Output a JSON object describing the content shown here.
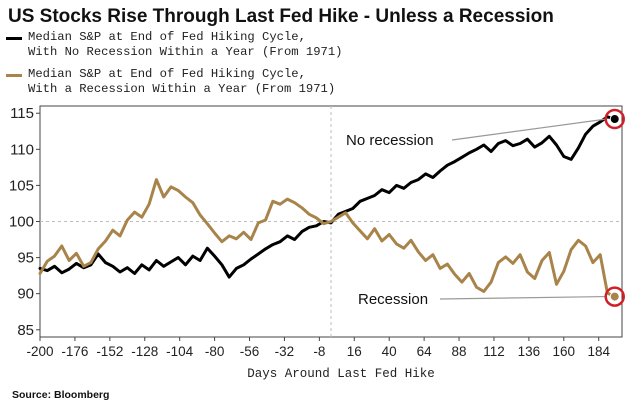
{
  "title": "US Stocks Rise Through Last Fed Hike - Unless a Recession",
  "source": "Source: Bloomberg",
  "colors": {
    "no_recession": "#000000",
    "recession": "#a8844a",
    "marker": "#d0212a",
    "grid": "#bdbdbd"
  },
  "chart_data": {
    "type": "line",
    "title": "US Stocks Rise Through Last Fed Hike - Unless a Recession",
    "xlabel": "Days Around Last Fed Hike",
    "ylabel": "",
    "xlim": [
      -200,
      200
    ],
    "ylim": [
      84,
      116
    ],
    "x_ticks": [
      -200,
      -176,
      -152,
      -128,
      -104,
      -80,
      -56,
      -32,
      -8,
      16,
      40,
      64,
      88,
      112,
      136,
      160,
      184
    ],
    "x_tick_labels": [
      "-200",
      "-176",
      "-152",
      "-128",
      "-104",
      "-80",
      "-56",
      "-32",
      "-8",
      "16",
      "40",
      "64",
      "88",
      "112",
      "136",
      "160",
      "184"
    ],
    "y_ticks": [
      85,
      90,
      95,
      100,
      105,
      110,
      115
    ],
    "y_tick_labels": [
      "85",
      "90",
      "95",
      "100",
      "105",
      "110",
      "115"
    ],
    "reference_line_y": 100,
    "reference_line_x": 0,
    "grid": false,
    "legend_position": "top-left",
    "series": [
      {
        "name": "Median S&P at End of Fed Hiking Cycle, With No Recession Within a Year (From 1971)",
        "legend_lines": [
          "Median S&P at End of Fed Hiking Cycle,",
          "With No Recession Within a Year (From 1971)"
        ],
        "x": [
          -200,
          -195,
          -190,
          -185,
          -180,
          -175,
          -170,
          -165,
          -160,
          -155,
          -150,
          -145,
          -140,
          -135,
          -130,
          -125,
          -120,
          -115,
          -110,
          -105,
          -100,
          -95,
          -90,
          -85,
          -80,
          -75,
          -70,
          -65,
          -60,
          -55,
          -50,
          -45,
          -40,
          -35,
          -30,
          -25,
          -20,
          -15,
          -10,
          -5,
          0,
          5,
          10,
          15,
          20,
          25,
          30,
          35,
          40,
          45,
          50,
          55,
          60,
          65,
          70,
          75,
          80,
          85,
          90,
          95,
          100,
          105,
          110,
          115,
          120,
          125,
          130,
          135,
          140,
          145,
          150,
          155,
          160,
          165,
          170,
          175,
          180,
          185,
          190,
          195
        ],
        "values": [
          93.5,
          93.2,
          93.8,
          92.9,
          93.4,
          94.2,
          93.6,
          94.0,
          95.5,
          94.3,
          93.8,
          93.0,
          93.6,
          92.8,
          94.0,
          93.3,
          94.6,
          93.8,
          94.4,
          95.0,
          94.0,
          95.2,
          94.6,
          96.3,
          95.2,
          94.0,
          92.3,
          93.5,
          94.0,
          94.8,
          95.5,
          96.2,
          96.8,
          97.2,
          98.0,
          97.5,
          98.6,
          99.2,
          99.4,
          100.0,
          99.8,
          101.0,
          101.4,
          101.8,
          102.8,
          103.2,
          103.6,
          104.4,
          104.0,
          105.0,
          104.6,
          105.4,
          105.8,
          106.6,
          106.1,
          107.0,
          107.8,
          108.3,
          108.9,
          109.5,
          110.0,
          110.6,
          109.7,
          110.8,
          111.2,
          110.5,
          110.8,
          111.4,
          110.3,
          110.9,
          111.8,
          110.6,
          109.0,
          108.6,
          110.2,
          112.1,
          113.2,
          113.8,
          114.5,
          114.2
        ]
      },
      {
        "name": "Median S&P at End of Fed Hiking Cycle, With a Recession Within a Year (From 1971)",
        "legend_lines": [
          "Median S&P at End of Fed Hiking Cycle,",
          "With a Recession Within a Year (From 1971)"
        ],
        "x": [
          -200,
          -195,
          -190,
          -185,
          -180,
          -175,
          -170,
          -165,
          -160,
          -155,
          -150,
          -145,
          -140,
          -135,
          -130,
          -125,
          -120,
          -115,
          -110,
          -105,
          -100,
          -95,
          -90,
          -85,
          -80,
          -75,
          -70,
          -65,
          -60,
          -55,
          -50,
          -45,
          -40,
          -35,
          -30,
          -25,
          -20,
          -15,
          -10,
          -5,
          0,
          5,
          10,
          15,
          20,
          25,
          30,
          35,
          40,
          45,
          50,
          55,
          60,
          65,
          70,
          75,
          80,
          85,
          90,
          95,
          100,
          105,
          110,
          115,
          120,
          125,
          130,
          135,
          140,
          145,
          150,
          155,
          160,
          165,
          170,
          175,
          180,
          185,
          190,
          195
        ],
        "values": [
          92.8,
          94.5,
          95.2,
          96.6,
          94.6,
          95.6,
          93.8,
          94.3,
          96.2,
          97.3,
          98.8,
          98.0,
          100.2,
          101.3,
          100.6,
          102.4,
          105.8,
          103.4,
          104.8,
          104.3,
          103.4,
          102.6,
          100.9,
          99.7,
          98.4,
          97.2,
          98.0,
          97.6,
          98.5,
          97.5,
          99.8,
          100.2,
          102.8,
          102.4,
          103.1,
          102.6,
          101.9,
          101.0,
          100.5,
          99.7,
          100.0,
          100.6,
          101.2,
          99.8,
          98.7,
          97.6,
          99.0,
          97.3,
          98.2,
          96.9,
          96.3,
          97.4,
          95.8,
          94.6,
          95.4,
          93.5,
          94.1,
          92.7,
          91.6,
          92.8,
          90.9,
          90.3,
          91.6,
          94.3,
          95.1,
          94.2,
          95.4,
          93.0,
          92.1,
          94.6,
          95.7,
          91.3,
          93.1,
          96.1,
          97.4,
          96.6,
          94.3,
          95.4,
          90.1,
          89.6
        ]
      }
    ],
    "annotations": [
      {
        "text": "No recession",
        "series_index": 0,
        "x": 195,
        "y": 114.2
      },
      {
        "text": "Recession",
        "series_index": 1,
        "x": 195,
        "y": 89.6
      }
    ]
  }
}
